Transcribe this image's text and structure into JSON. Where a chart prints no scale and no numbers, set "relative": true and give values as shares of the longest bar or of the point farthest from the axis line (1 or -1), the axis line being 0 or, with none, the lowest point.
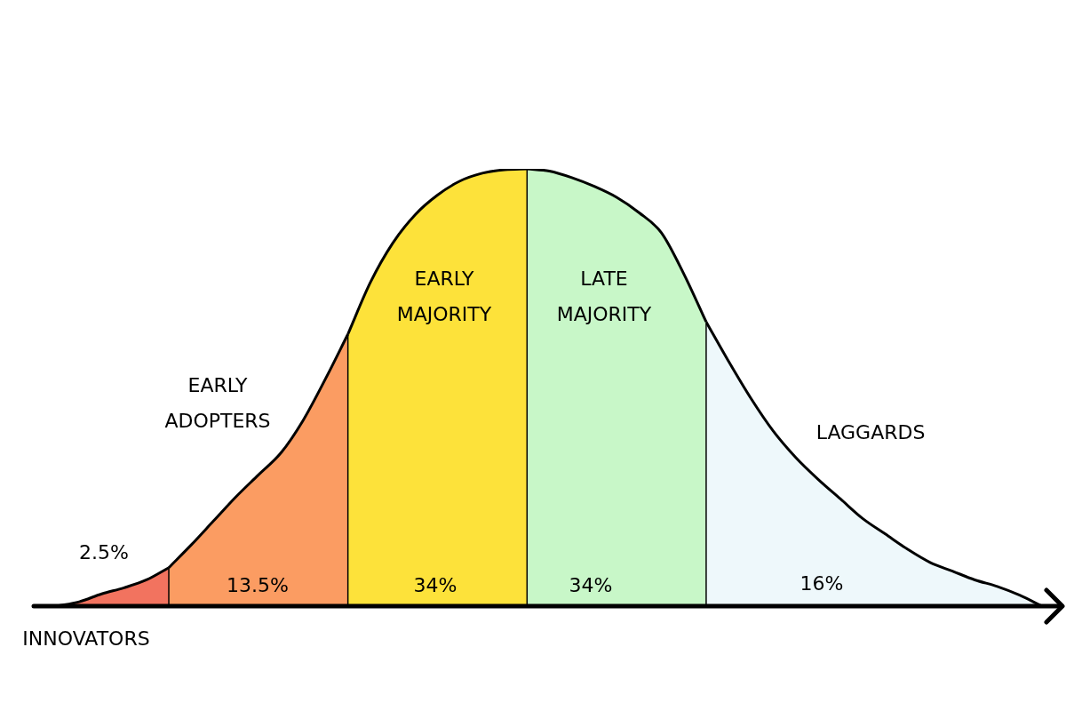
{
  "chart_data": {
    "type": "area",
    "relative": true,
    "marker": "none",
    "categories": [
      null,
      null,
      null,
      null,
      null,
      null,
      null,
      null,
      null,
      null,
      null,
      null,
      null,
      null,
      null,
      null,
      null,
      null,
      null,
      null,
      null,
      null,
      null,
      null,
      null,
      null,
      null,
      null,
      null,
      null,
      null,
      null,
      null,
      null,
      null,
      null,
      null,
      null,
      null,
      null,
      null,
      null,
      null,
      null,
      null
    ],
    "series": [
      {
        "name": "INNOVATORS",
        "color": "#f2735f",
        "values": [
          0,
          0.01,
          0.028,
          0.042,
          0.06,
          0.088,
          null,
          null,
          null,
          null,
          null,
          null,
          null,
          null,
          null,
          null,
          null,
          null,
          null,
          null,
          null,
          null,
          null,
          null,
          null,
          null,
          null,
          null,
          null,
          null,
          null,
          null,
          null,
          null,
          null,
          null,
          null,
          null,
          null,
          null,
          null,
          null,
          null,
          null,
          null
        ]
      },
      {
        "name": "EARLY ADOPTERS",
        "color": "#fb9c62",
        "values": [
          null,
          null,
          null,
          null,
          null,
          0.088,
          0.14,
          0.195,
          0.25,
          0.3,
          0.35,
          0.425,
          0.52,
          0.622,
          null,
          null,
          null,
          null,
          null,
          null,
          null,
          null,
          null,
          null,
          null,
          null,
          null,
          null,
          null,
          null,
          null,
          null,
          null,
          null,
          null,
          null,
          null,
          null,
          null,
          null,
          null,
          null,
          null,
          null,
          null
        ]
      },
      {
        "name": "EARLY MAJORITY",
        "color": "#fde23a",
        "values": [
          null,
          null,
          null,
          null,
          null,
          null,
          null,
          null,
          null,
          null,
          null,
          null,
          null,
          0.622,
          0.74,
          0.83,
          0.895,
          0.94,
          0.972,
          0.99,
          0.998,
          1,
          null,
          null,
          null,
          null,
          null,
          null,
          null,
          null,
          null,
          null,
          null,
          null,
          null,
          null,
          null,
          null,
          null,
          null,
          null,
          null,
          null,
          null,
          null
        ]
      },
      {
        "name": "LATE MAJORITY",
        "color": "#c8f7c8",
        "values": [
          null,
          null,
          null,
          null,
          null,
          null,
          null,
          null,
          null,
          null,
          null,
          null,
          null,
          null,
          null,
          null,
          null,
          null,
          null,
          null,
          null,
          1,
          0.995,
          0.98,
          0.96,
          0.935,
          0.9,
          0.854,
          0.76,
          0.65,
          null,
          null,
          null,
          null,
          null,
          null,
          null,
          null,
          null,
          null,
          null,
          null,
          null,
          null,
          null
        ]
      },
      {
        "name": "LAGGARDS",
        "color": "#eef8fb",
        "values": [
          null,
          null,
          null,
          null,
          null,
          null,
          null,
          null,
          null,
          null,
          null,
          null,
          null,
          null,
          null,
          null,
          null,
          null,
          null,
          null,
          null,
          null,
          null,
          null,
          null,
          null,
          null,
          null,
          null,
          0.65,
          0.56,
          0.475,
          0.4,
          0.34,
          0.29,
          0.245,
          0.2,
          0.165,
          0.13,
          0.1,
          0.08,
          0.06,
          0.045,
          0.025,
          0
        ]
      }
    ],
    "annotations": [
      "2.5%",
      "13.5%",
      "34%",
      "34%",
      "16%"
    ]
  }
}
